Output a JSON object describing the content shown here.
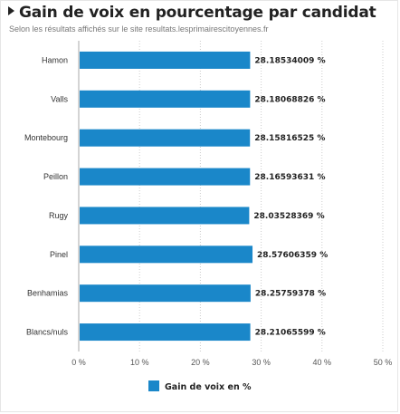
{
  "header": {
    "title": "Gain de voix en pourcentage par candidat",
    "subtitle": "Selon les résultats affichés sur le site resultats.lesprimairescitoyennes.fr"
  },
  "chart_data": {
    "type": "bar",
    "orientation": "horizontal",
    "title": "Gain de voix en pourcentage par candidat",
    "subtitle": "Selon les résultats affichés sur le site resultats.lesprimairescitoyennes.fr",
    "categories": [
      "Hamon",
      "Valls",
      "Montebourg",
      "Peillon",
      "Rugy",
      "Pinel",
      "Benhamias",
      "Blancs/nuls"
    ],
    "series": [
      {
        "name": "Gain de voix en %",
        "values": [
          28.18534009,
          28.18068826,
          28.15816525,
          28.16593631,
          28.03528369,
          28.57606359,
          28.25759378,
          28.21065599
        ],
        "labels": [
          "28.18534009 %",
          "28.18068826 %",
          "28.15816525 %",
          "28.16593631 %",
          "28.03528369 %",
          "28.57606359 %",
          "28.25759378 %",
          "28.21065599 %"
        ]
      }
    ],
    "xlim": [
      0,
      50
    ],
    "ticks": [
      0,
      10,
      20,
      30,
      40,
      50
    ],
    "tick_labels": [
      "0 %",
      "10 %",
      "20 %",
      "30 %",
      "40 %",
      "50 %"
    ],
    "grid": true,
    "legend_position": "bottom-center",
    "colors": {
      "bar": "#1a87c9",
      "grid": "#cccccc",
      "axis": "#aaaaaa"
    }
  }
}
